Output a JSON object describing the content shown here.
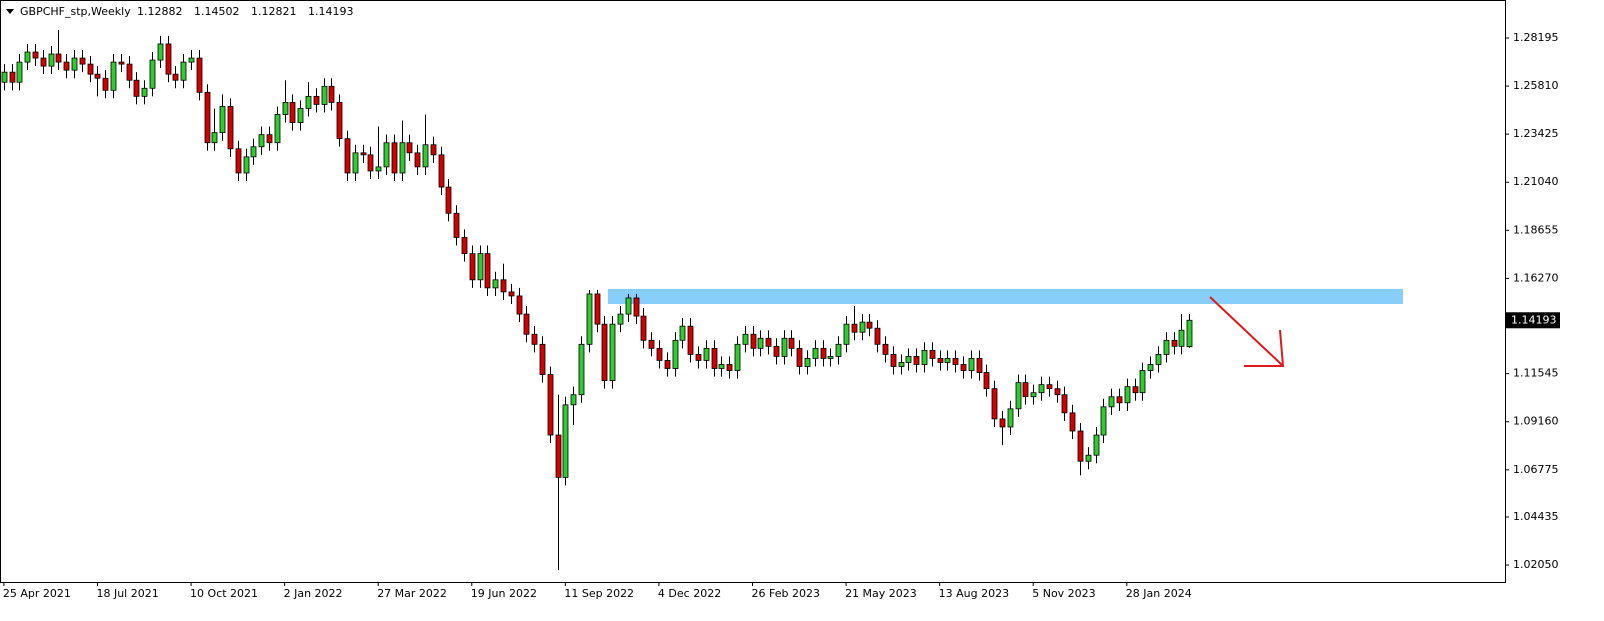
{
  "chart_data": {
    "type": "candlestick",
    "title": "GBPCHF_stp,Weekly",
    "up_color": "#2ecc2e",
    "down_color": "#d40000",
    "xlim": [
      -0.5,
      192.5
    ],
    "ylim": [
      1.0121,
      1.3008
    ],
    "zone": {
      "low": 1.15,
      "high": 1.1575,
      "color": "#87cefa"
    },
    "xticks": [
      {
        "value": 0,
        "label": "25 Apr 2021"
      },
      {
        "value": 12,
        "label": "18 Jul 2021"
      },
      {
        "value": 24,
        "label": "10 Oct 2021"
      },
      {
        "value": 36,
        "label": "2 Jan 2022"
      },
      {
        "value": 48,
        "label": "27 Mar 2022"
      },
      {
        "value": 60,
        "label": "19 Jun 2022"
      },
      {
        "value": 72,
        "label": "11 Sep 2022"
      },
      {
        "value": 84,
        "label": "4 Dec 2022"
      },
      {
        "value": 96,
        "label": "26 Feb 2023"
      },
      {
        "value": 108,
        "label": "21 May 2023"
      },
      {
        "value": 120,
        "label": "13 Aug 2023"
      },
      {
        "value": 132,
        "label": "5 Nov 2023"
      },
      {
        "value": 144,
        "label": "28 Jan 2024"
      }
    ],
    "yticks": [
      {
        "value": 1.28195,
        "label": "1.28195"
      },
      {
        "value": 1.2581,
        "label": "1.25810"
      },
      {
        "value": 1.23425,
        "label": "1.23425"
      },
      {
        "value": 1.2104,
        "label": "1.21040"
      },
      {
        "value": 1.18655,
        "label": "1.18655"
      },
      {
        "value": 1.1627,
        "label": "1.16270"
      },
      {
        "value": 1.11545,
        "label": "1.11545"
      },
      {
        "value": 1.0916,
        "label": "1.09160"
      },
      {
        "value": 1.06775,
        "label": "1.06775"
      },
      {
        "value": 1.04435,
        "label": "1.04435"
      },
      {
        "value": 1.0205,
        "label": "1.02050"
      }
    ],
    "open": [
      1.26,
      1.265,
      1.26,
      1.27,
      1.275,
      1.272,
      1.268,
      1.274,
      1.27,
      1.266,
      1.272,
      1.269,
      1.264,
      1.262,
      1.256,
      1.27,
      1.269,
      1.261,
      1.253,
      1.257,
      1.271,
      1.279,
      1.264,
      1.261,
      1.27,
      1.272,
      1.255,
      1.23,
      1.235,
      1.248,
      1.227,
      1.215,
      1.223,
      1.228,
      1.234,
      1.23,
      1.244,
      1.25,
      1.24,
      1.247,
      1.253,
      1.249,
      1.258,
      1.25,
      1.232,
      1.215,
      1.225,
      1.224,
      1.216,
      1.218,
      1.23,
      1.215,
      1.23,
      1.225,
      1.218,
      1.229,
      1.224,
      1.208,
      1.195,
      1.183,
      1.175,
      1.162,
      1.175,
      1.158,
      1.162,
      1.156,
      1.154,
      1.145,
      1.135,
      1.13,
      1.115,
      1.085,
      1.064,
      1.1,
      1.105,
      1.13,
      1.155,
      1.14,
      1.112,
      1.14,
      1.145,
      1.153,
      1.144,
      1.132,
      1.128,
      1.122,
      1.118,
      1.132,
      1.139,
      1.125,
      1.122,
      1.128,
      1.118,
      1.12,
      1.117,
      1.13,
      1.135,
      1.128,
      1.133,
      1.129,
      1.124,
      1.133,
      1.128,
      1.119,
      1.123,
      1.128,
      1.123,
      1.124,
      1.13,
      1.14,
      1.136,
      1.141,
      1.138,
      1.13,
      1.125,
      1.119,
      1.121,
      1.124,
      1.12,
      1.127,
      1.123,
      1.121,
      1.123,
      1.12,
      1.117,
      1.123,
      1.116,
      1.108,
      1.093,
      1.089,
      1.098,
      1.111,
      1.104,
      1.106,
      1.11,
      1.108,
      1.105,
      1.096,
      1.087,
      1.072,
      1.075,
      1.085,
      1.099,
      1.104,
      1.101,
      1.109,
      1.106,
      1.117,
      1.12,
      1.125,
      1.132,
      1.129,
      1.12882
    ],
    "high": [
      1.269,
      1.269,
      1.274,
      1.279,
      1.279,
      1.276,
      1.278,
      1.286,
      1.274,
      1.276,
      1.276,
      1.273,
      1.268,
      1.266,
      1.274,
      1.274,
      1.273,
      1.265,
      1.261,
      1.275,
      1.283,
      1.283,
      1.268,
      1.274,
      1.276,
      1.276,
      1.259,
      1.247,
      1.254,
      1.252,
      1.231,
      1.227,
      1.232,
      1.238,
      1.238,
      1.248,
      1.261,
      1.254,
      1.251,
      1.26,
      1.257,
      1.262,
      1.262,
      1.254,
      1.236,
      1.229,
      1.229,
      1.228,
      1.238,
      1.234,
      1.234,
      1.241,
      1.234,
      1.229,
      1.244,
      1.233,
      1.228,
      1.212,
      1.199,
      1.187,
      1.179,
      1.179,
      1.179,
      1.166,
      1.17,
      1.16,
      1.158,
      1.149,
      1.139,
      1.134,
      1.119,
      1.105,
      1.104,
      1.109,
      1.134,
      1.157,
      1.157,
      1.144,
      1.144,
      1.149,
      1.155,
      1.155,
      1.148,
      1.136,
      1.132,
      1.126,
      1.136,
      1.143,
      1.143,
      1.129,
      1.132,
      1.132,
      1.124,
      1.124,
      1.134,
      1.139,
      1.139,
      1.137,
      1.137,
      1.133,
      1.137,
      1.137,
      1.132,
      1.127,
      1.132,
      1.132,
      1.128,
      1.134,
      1.144,
      1.149,
      1.145,
      1.145,
      1.142,
      1.134,
      1.129,
      1.125,
      1.128,
      1.128,
      1.131,
      1.131,
      1.127,
      1.127,
      1.127,
      1.124,
      1.127,
      1.127,
      1.12,
      1.112,
      1.097,
      1.102,
      1.115,
      1.115,
      1.11,
      1.114,
      1.114,
      1.112,
      1.109,
      1.1,
      1.091,
      1.079,
      1.089,
      1.103,
      1.108,
      1.108,
      1.113,
      1.113,
      1.121,
      1.124,
      1.129,
      1.136,
      1.136,
      1.145,
      1.14502
    ],
    "low": [
      1.256,
      1.256,
      1.256,
      1.266,
      1.268,
      1.264,
      1.264,
      1.266,
      1.262,
      1.262,
      1.265,
      1.26,
      1.253,
      1.252,
      1.252,
      1.265,
      1.257,
      1.249,
      1.249,
      1.253,
      1.267,
      1.26,
      1.257,
      1.257,
      1.266,
      1.251,
      1.226,
      1.226,
      1.231,
      1.223,
      1.211,
      1.211,
      1.219,
      1.224,
      1.226,
      1.226,
      1.24,
      1.236,
      1.236,
      1.243,
      1.245,
      1.245,
      1.246,
      1.228,
      1.211,
      1.211,
      1.22,
      1.212,
      1.212,
      1.214,
      1.211,
      1.211,
      1.221,
      1.214,
      1.214,
      1.22,
      1.204,
      1.191,
      1.179,
      1.171,
      1.158,
      1.158,
      1.154,
      1.154,
      1.152,
      1.15,
      1.141,
      1.131,
      1.126,
      1.111,
      1.081,
      1.018,
      1.06,
      1.09,
      1.101,
      1.126,
      1.136,
      1.108,
      1.108,
      1.136,
      1.141,
      1.14,
      1.128,
      1.124,
      1.118,
      1.114,
      1.114,
      1.128,
      1.121,
      1.118,
      1.118,
      1.114,
      1.114,
      1.113,
      1.113,
      1.126,
      1.124,
      1.124,
      1.125,
      1.12,
      1.12,
      1.124,
      1.115,
      1.115,
      1.119,
      1.119,
      1.119,
      1.12,
      1.126,
      1.132,
      1.132,
      1.134,
      1.126,
      1.121,
      1.115,
      1.115,
      1.117,
      1.116,
      1.116,
      1.119,
      1.117,
      1.117,
      1.116,
      1.113,
      1.113,
      1.112,
      1.104,
      1.089,
      1.08,
      1.085,
      1.094,
      1.1,
      1.1,
      1.102,
      1.104,
      1.101,
      1.092,
      1.083,
      1.065,
      1.068,
      1.071,
      1.081,
      1.095,
      1.097,
      1.097,
      1.102,
      1.102,
      1.113,
      1.116,
      1.121,
      1.125,
      1.125,
      1.12821
    ],
    "close": [
      1.265,
      1.26,
      1.27,
      1.275,
      1.272,
      1.268,
      1.274,
      1.27,
      1.266,
      1.272,
      1.269,
      1.264,
      1.262,
      1.256,
      1.27,
      1.269,
      1.261,
      1.253,
      1.257,
      1.271,
      1.279,
      1.264,
      1.261,
      1.27,
      1.272,
      1.255,
      1.23,
      1.235,
      1.248,
      1.227,
      1.215,
      1.223,
      1.228,
      1.234,
      1.23,
      1.244,
      1.25,
      1.24,
      1.247,
      1.253,
      1.249,
      1.258,
      1.25,
      1.232,
      1.215,
      1.225,
      1.224,
      1.216,
      1.218,
      1.23,
      1.215,
      1.23,
      1.225,
      1.218,
      1.229,
      1.224,
      1.208,
      1.195,
      1.183,
      1.175,
      1.162,
      1.175,
      1.158,
      1.162,
      1.156,
      1.154,
      1.145,
      1.135,
      1.13,
      1.115,
      1.085,
      1.064,
      1.1,
      1.105,
      1.13,
      1.155,
      1.14,
      1.112,
      1.14,
      1.145,
      1.153,
      1.144,
      1.132,
      1.128,
      1.122,
      1.118,
      1.132,
      1.139,
      1.125,
      1.122,
      1.128,
      1.118,
      1.12,
      1.117,
      1.13,
      1.135,
      1.128,
      1.133,
      1.129,
      1.124,
      1.133,
      1.128,
      1.119,
      1.123,
      1.128,
      1.123,
      1.124,
      1.13,
      1.14,
      1.136,
      1.141,
      1.138,
      1.13,
      1.125,
      1.119,
      1.121,
      1.124,
      1.12,
      1.127,
      1.123,
      1.121,
      1.123,
      1.12,
      1.117,
      1.123,
      1.116,
      1.108,
      1.093,
      1.089,
      1.098,
      1.111,
      1.104,
      1.106,
      1.11,
      1.108,
      1.105,
      1.096,
      1.087,
      1.072,
      1.075,
      1.085,
      1.099,
      1.104,
      1.101,
      1.109,
      1.106,
      1.117,
      1.12,
      1.125,
      1.132,
      1.129,
      1.137,
      1.14193
    ]
  }
}
